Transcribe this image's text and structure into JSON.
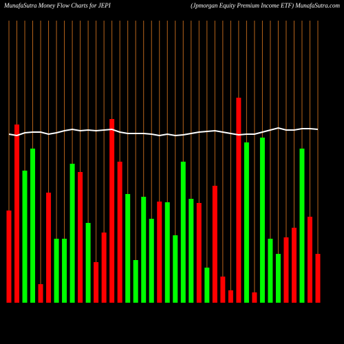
{
  "chart_data": {
    "type": "bar",
    "title": "MunafaSutra  Money Flow  Charts for JEPI",
    "subtitle": "(Jpmorgan  Equity Premium Income   ETF) MunafaSutra.com",
    "categories": [
      null,
      null,
      null,
      null,
      null,
      null,
      null,
      null,
      null,
      null,
      null,
      null,
      null,
      null,
      null,
      null,
      null,
      null,
      null,
      null,
      null,
      null,
      null,
      null,
      null,
      null,
      null,
      null,
      null,
      null,
      null,
      null,
      null,
      null,
      null,
      null,
      null,
      null,
      null,
      null
    ],
    "ylim": [
      0,
      300
    ],
    "bars": {
      "values": [
        134,
        259,
        192,
        224,
        27,
        160,
        93,
        93,
        202,
        190,
        116,
        59,
        102,
        267,
        205,
        158,
        62,
        154,
        122,
        147,
        146,
        98,
        205,
        151,
        145,
        51,
        170,
        38,
        18,
        298,
        233,
        15,
        240,
        93,
        71,
        95,
        109,
        224,
        125,
        71
      ],
      "colors": [
        "#ff0000",
        "#ff0000",
        "#00ff00",
        "#00ff00",
        "#ff0000",
        "#ff0000",
        "#00ff00",
        "#00ff00",
        "#00ff00",
        "#ff0000",
        "#00ff00",
        "#ff0000",
        "#ff0000",
        "#ff0000",
        "#ff0000",
        "#00ff00",
        "#00ff00",
        "#00ff00",
        "#00ff00",
        "#ff0000",
        "#00ff00",
        "#00ff00",
        "#00ff00",
        "#00ff00",
        "#ff0000",
        "#00ff00",
        "#ff0000",
        "#ff0000",
        "#ff0000",
        "#ff0000",
        "#00ff00",
        "#ff0000",
        "#00ff00",
        "#00ff00",
        "#00ff00",
        "#ff0000",
        "#ff0000",
        "#00ff00",
        "#ff0000",
        "#ff0000"
      ]
    },
    "line": {
      "color": "#ffffff",
      "values": [
        245,
        243,
        247,
        248,
        248,
        245,
        247,
        250,
        252,
        250,
        251,
        250,
        251,
        252,
        248,
        246,
        246,
        246,
        245,
        243,
        245,
        243,
        244,
        246,
        248,
        249,
        250,
        248,
        246,
        244,
        245,
        245,
        248,
        251,
        254,
        251,
        251,
        253,
        253,
        252
      ]
    }
  }
}
